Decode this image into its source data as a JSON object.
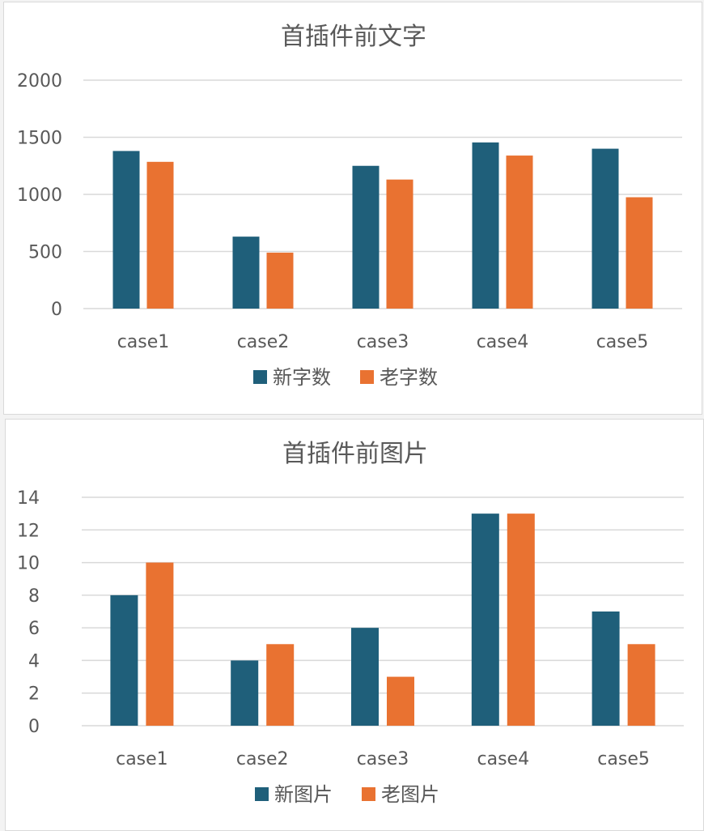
{
  "chart_data": [
    {
      "type": "bar",
      "title": "首插件前文字",
      "categories": [
        "case1",
        "case2",
        "case3",
        "case4",
        "case5"
      ],
      "series": [
        {
          "name": "新字数",
          "values": [
            1380,
            630,
            1250,
            1455,
            1400
          ],
          "color": "#1f5f7a"
        },
        {
          "name": "老字数",
          "values": [
            1285,
            490,
            1130,
            1340,
            975
          ],
          "color": "#e97231"
        }
      ],
      "yticks": [
        "0",
        "500",
        "1000",
        "1500",
        "2000"
      ],
      "ylim": [
        0,
        2000
      ],
      "grid": true,
      "legend": "bottom"
    },
    {
      "type": "bar",
      "title": "首插件前图片",
      "categories": [
        "case1",
        "case2",
        "case3",
        "case4",
        "case5"
      ],
      "series": [
        {
          "name": "新图片",
          "values": [
            8,
            4,
            6,
            13,
            7
          ],
          "color": "#1f5f7a"
        },
        {
          "name": "老图片",
          "values": [
            10,
            5,
            3,
            13,
            5
          ],
          "color": "#e97231"
        }
      ],
      "yticks": [
        "0",
        "2",
        "4",
        "6",
        "8",
        "10",
        "12",
        "14"
      ],
      "ylim": [
        0,
        14
      ],
      "grid": true,
      "legend": "bottom"
    }
  ]
}
